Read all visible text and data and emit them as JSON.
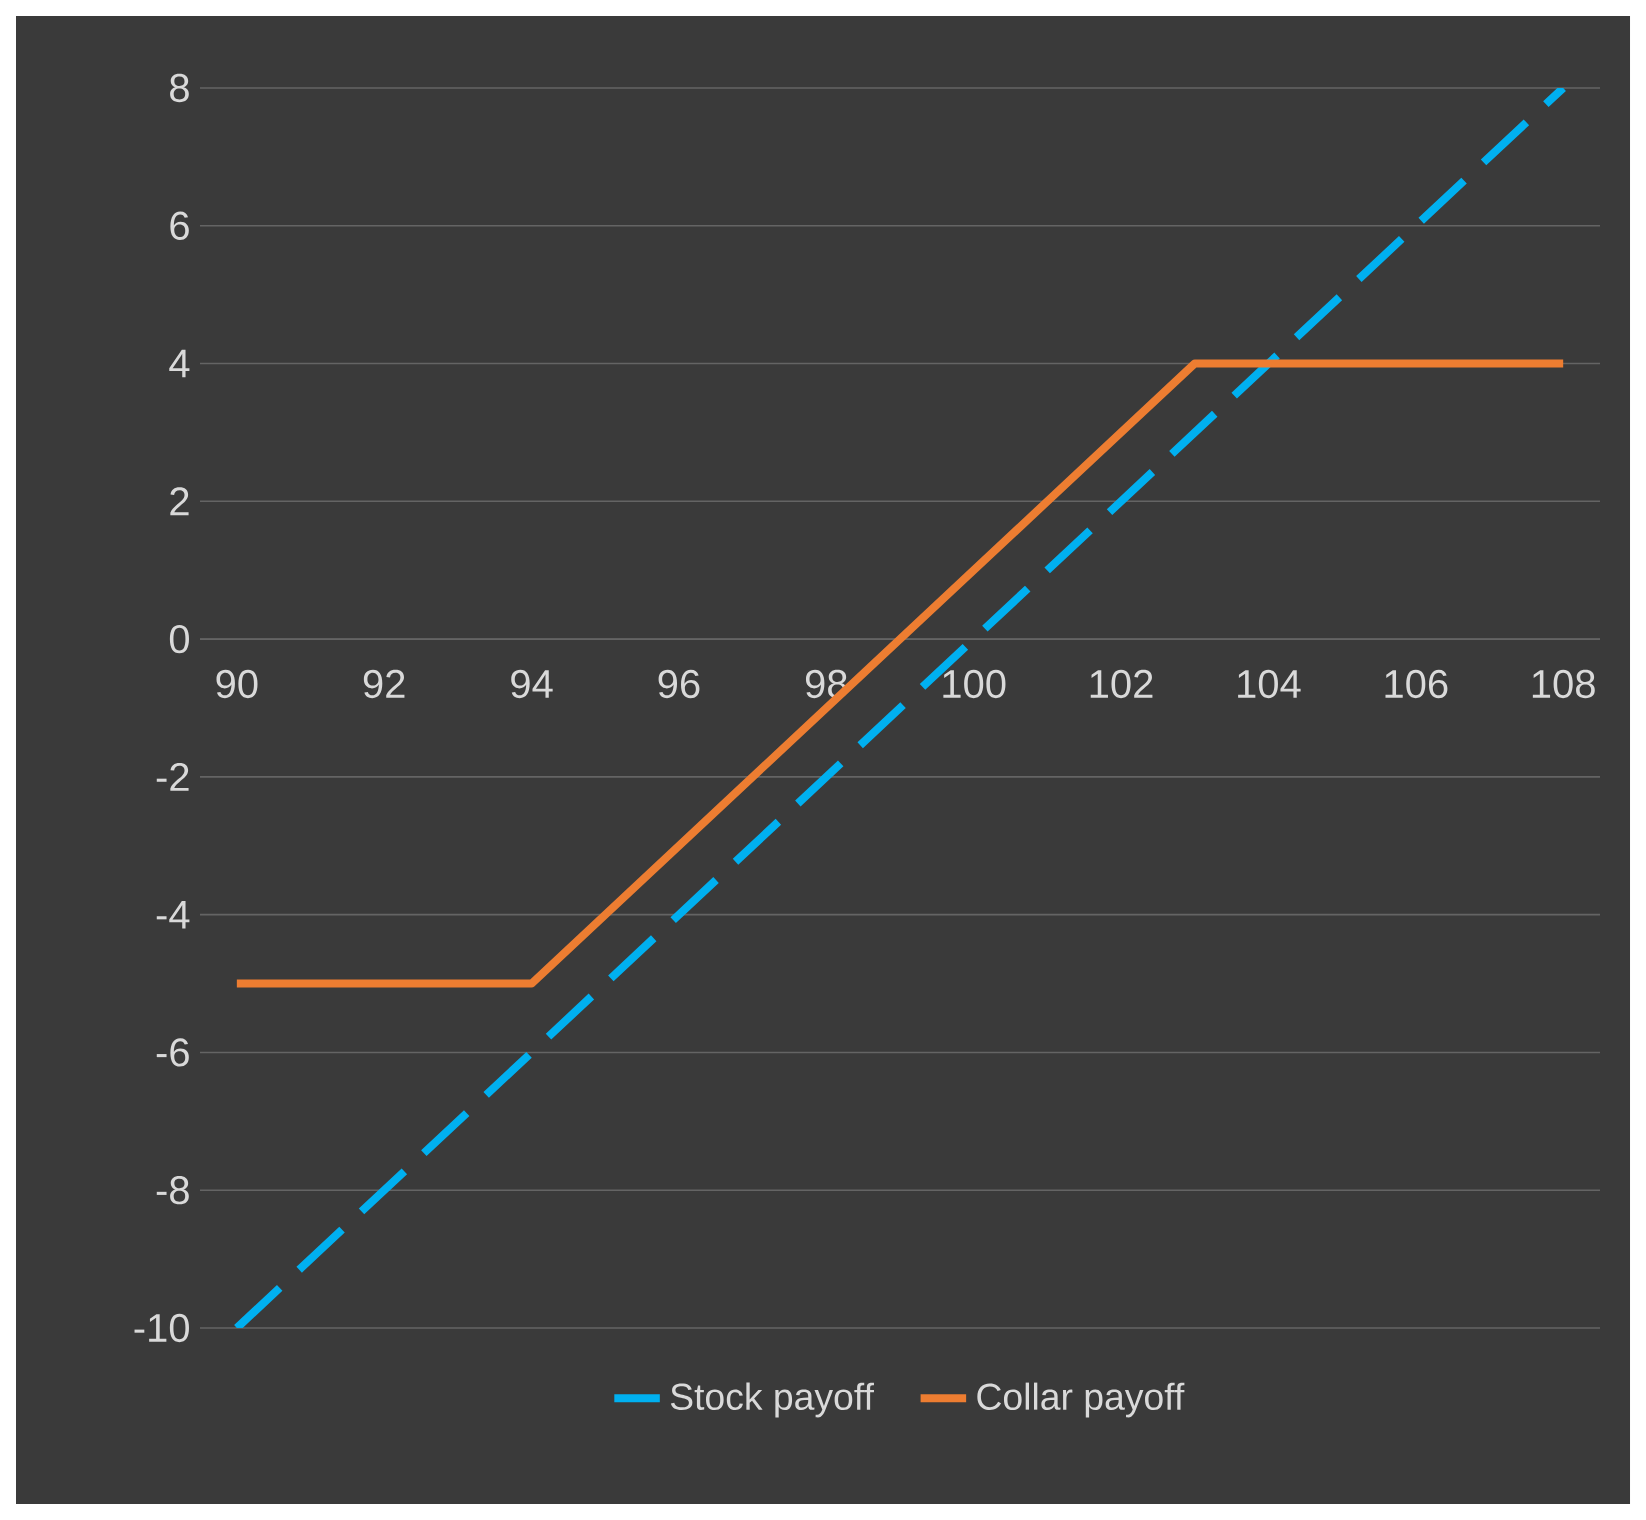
{
  "chart_data": {
    "type": "line",
    "series": [
      {
        "name": "Stock payoff",
        "color": "#00b0f0",
        "line_style": "dashed",
        "x": [
          90,
          108
        ],
        "values": [
          -10,
          8
        ]
      },
      {
        "name": "Collar payoff",
        "color": "#ed7d31",
        "line_style": "solid",
        "x": [
          90,
          94,
          103,
          108
        ],
        "values": [
          -5,
          -5,
          4,
          4
        ]
      }
    ],
    "xlim": [
      89.5,
      108.5
    ],
    "ylim": [
      -10,
      8
    ],
    "xticks": [
      90,
      92,
      94,
      96,
      98,
      100,
      102,
      104,
      106,
      108
    ],
    "yticks": [
      -10,
      -8,
      -6,
      -4,
      -2,
      0,
      2,
      4,
      6,
      8
    ],
    "grid": "y",
    "legend": "bottom",
    "marker": "none"
  }
}
